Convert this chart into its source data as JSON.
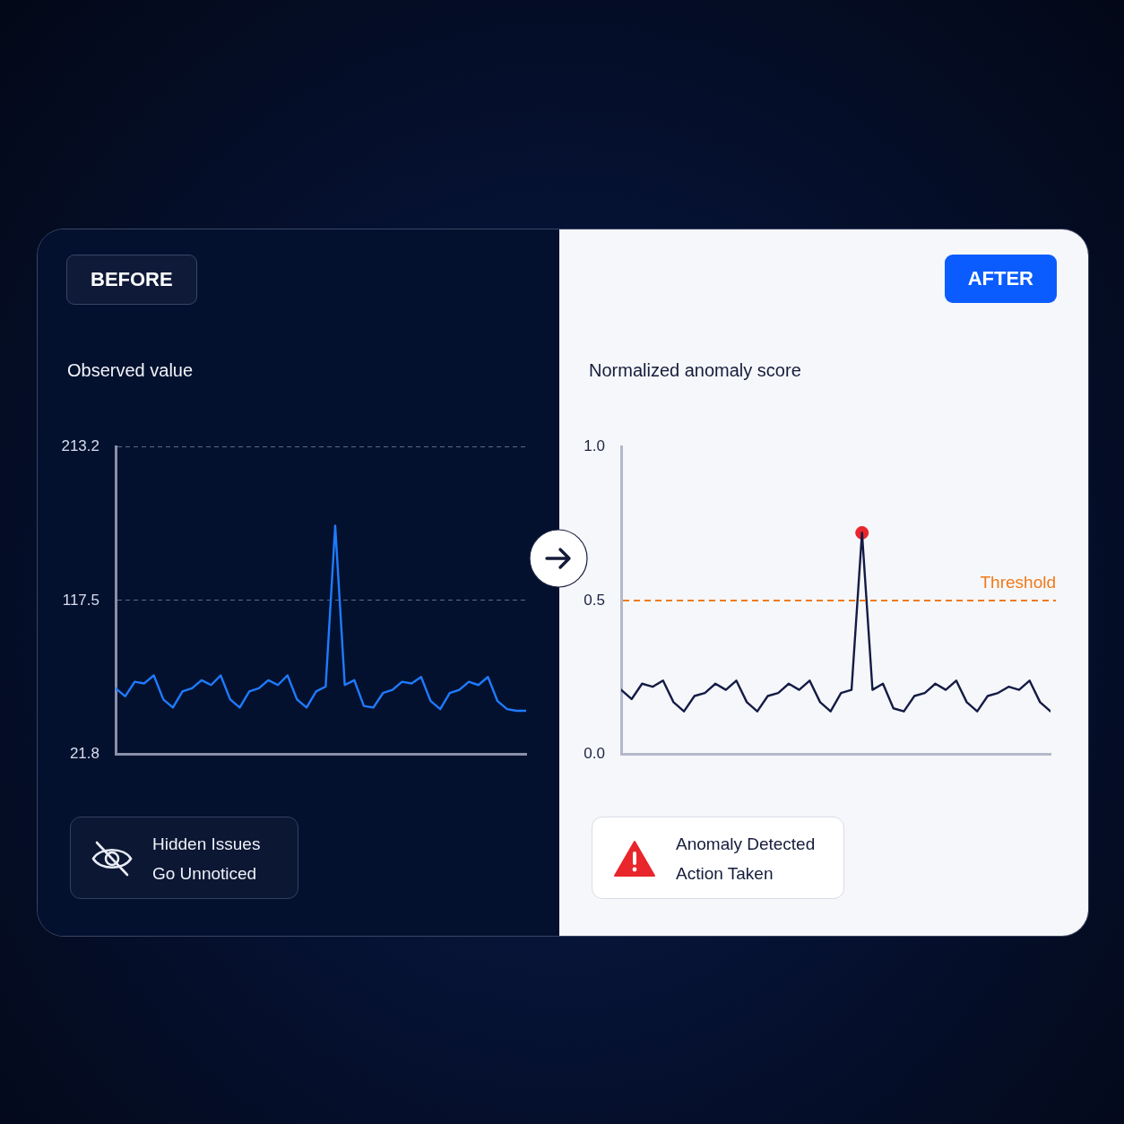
{
  "chart_data": [
    {
      "type": "line",
      "subtitle": "BEFORE",
      "title": "Observed value",
      "categories": [
        null,
        null,
        null,
        null,
        null,
        null,
        null,
        null,
        null,
        null,
        null,
        null,
        null,
        null,
        null,
        null,
        null,
        null,
        null,
        null,
        null,
        null,
        null,
        null,
        null,
        null,
        null,
        null,
        null,
        null,
        null,
        null,
        null,
        null,
        null,
        null,
        null,
        null,
        null,
        null,
        null,
        null,
        null,
        null
      ],
      "series": [
        {
          "color": "#1f7bff",
          "values": [
            63,
            58,
            67,
            66,
            71,
            56,
            51,
            61,
            63,
            68,
            65,
            71,
            56,
            51,
            61,
            63,
            68,
            65,
            71,
            56,
            51,
            61,
            64,
            164,
            65,
            68,
            52,
            51,
            60,
            62,
            67,
            66,
            70,
            55,
            50,
            60,
            62,
            67,
            65,
            70,
            55,
            50,
            49,
            49
          ]
        }
      ],
      "ylim": [
        21.8,
        213.2
      ],
      "yticks": [
        21.8,
        117.5,
        213.2
      ],
      "grid": "y",
      "tick_labels": "y",
      "marker": "none",
      "line_style": "solid",
      "annotations": [
        "Hidden Issues\nGo Unnoticed"
      ]
    },
    {
      "type": "line",
      "subtitle": "AFTER",
      "title": "Normalized anomaly score",
      "categories": [
        null,
        null,
        null,
        null,
        null,
        null,
        null,
        null,
        null,
        null,
        null,
        null,
        null,
        null,
        null,
        null,
        null,
        null,
        null,
        null,
        null,
        null,
        null,
        null,
        null,
        null,
        null,
        null,
        null,
        null,
        null,
        null,
        null,
        null,
        null,
        null,
        null,
        null,
        null,
        null,
        null,
        null
      ],
      "series": [
        {
          "color": "#141b45",
          "values": [
            0.21,
            0.18,
            0.23,
            0.22,
            0.24,
            0.17,
            0.14,
            0.19,
            0.2,
            0.23,
            0.21,
            0.24,
            0.17,
            0.14,
            0.19,
            0.2,
            0.23,
            0.21,
            0.24,
            0.17,
            0.14,
            0.2,
            0.21,
            0.72,
            0.21,
            0.23,
            0.15,
            0.14,
            0.19,
            0.2,
            0.23,
            0.21,
            0.24,
            0.17,
            0.14,
            0.19,
            0.2,
            0.22,
            0.21,
            0.24,
            0.17,
            0.14
          ]
        },
        {
          "type": "scatter",
          "color": "#e8262b",
          "marker": "circle",
          "values": [
            null,
            null,
            null,
            null,
            null,
            null,
            null,
            null,
            null,
            null,
            null,
            null,
            null,
            null,
            null,
            null,
            null,
            null,
            null,
            null,
            null,
            null,
            null,
            0.72,
            null,
            null,
            null,
            null,
            null,
            null,
            null,
            null,
            null,
            null,
            null,
            null,
            null,
            null,
            null,
            null,
            null,
            null
          ]
        }
      ],
      "ylim": [
        0,
        1
      ],
      "yticks": [
        {
          "value": 0,
          "label": "0.0"
        },
        0.5,
        {
          "value": 1,
          "label": "1.0"
        }
      ],
      "grid": false,
      "tick_labels": "y",
      "marker": "none",
      "line_style": "solid",
      "ref_lines": [
        {
          "axis": "y",
          "value": 0.5,
          "label": "Threshold",
          "color": "#f07a1a",
          "line_style": "dashed"
        }
      ],
      "annotations": [
        "Anomaly Detected\nAction Taken"
      ]
    }
  ]
}
